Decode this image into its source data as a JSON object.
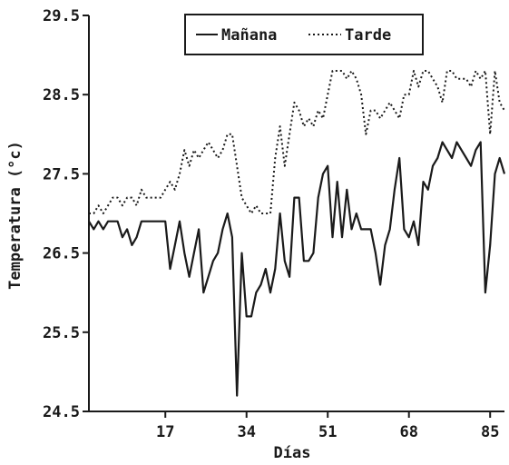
{
  "chart_data": {
    "type": "line",
    "xlabel": "Días",
    "ylabel": "Temperatura (°c)",
    "xlim": [
      1,
      88
    ],
    "ylim": [
      24.5,
      29.5
    ],
    "xticks": [
      17,
      34,
      51,
      68,
      85
    ],
    "xtick_labels": [
      "17",
      "34",
      "51",
      "68",
      "85"
    ],
    "yticks": [
      24.5,
      25.5,
      26.5,
      27.5,
      28.5,
      29.5
    ],
    "ytick_labels": [
      "24.5",
      "25.5",
      "26.5",
      "27.5",
      "28.5",
      "29.5"
    ],
    "grid": false,
    "legend_position": "top-right",
    "colors": {
      "line": "#1a1a1a"
    },
    "x": [
      1,
      2,
      3,
      4,
      5,
      6,
      7,
      8,
      9,
      10,
      11,
      12,
      13,
      14,
      15,
      16,
      17,
      18,
      19,
      20,
      21,
      22,
      23,
      24,
      25,
      26,
      27,
      28,
      29,
      30,
      31,
      32,
      33,
      34,
      35,
      36,
      37,
      38,
      39,
      40,
      41,
      42,
      43,
      44,
      45,
      46,
      47,
      48,
      49,
      50,
      51,
      52,
      53,
      54,
      55,
      56,
      57,
      58,
      59,
      60,
      61,
      62,
      63,
      64,
      65,
      66,
      67,
      68,
      69,
      70,
      71,
      72,
      73,
      74,
      75,
      76,
      77,
      78,
      79,
      80,
      81,
      82,
      83,
      84,
      85,
      86,
      87,
      88
    ],
    "series": [
      {
        "name": "Mañana",
        "style": "solid",
        "values": [
          26.9,
          26.8,
          26.9,
          26.8,
          26.9,
          26.9,
          26.9,
          26.7,
          26.8,
          26.6,
          26.7,
          26.9,
          26.9,
          26.9,
          26.9,
          26.9,
          26.9,
          26.3,
          26.6,
          26.9,
          26.5,
          26.2,
          26.5,
          26.8,
          26.0,
          26.2,
          26.4,
          26.5,
          26.8,
          27.0,
          26.7,
          24.7,
          26.5,
          25.7,
          25.7,
          26.0,
          26.1,
          26.3,
          26.0,
          26.3,
          27.0,
          26.4,
          26.2,
          27.2,
          27.2,
          26.4,
          26.4,
          26.5,
          27.2,
          27.5,
          27.6,
          26.7,
          27.4,
          26.7,
          27.3,
          26.8,
          27.0,
          26.8,
          26.8,
          26.8,
          26.5,
          26.1,
          26.6,
          26.8,
          27.3,
          27.7,
          26.8,
          26.7,
          26.9,
          26.6,
          27.4,
          27.3,
          27.6,
          27.7,
          27.9,
          27.8,
          27.7,
          27.9,
          27.8,
          27.7,
          27.6,
          27.8,
          27.9,
          26.0,
          26.6,
          27.5,
          27.7,
          27.5
        ]
      },
      {
        "name": "Tarde",
        "style": "dotted",
        "values": [
          27.0,
          27.0,
          27.1,
          27.0,
          27.1,
          27.2,
          27.2,
          27.1,
          27.2,
          27.2,
          27.1,
          27.3,
          27.2,
          27.2,
          27.2,
          27.2,
          27.3,
          27.4,
          27.3,
          27.5,
          27.8,
          27.6,
          27.8,
          27.7,
          27.8,
          27.9,
          27.8,
          27.7,
          27.8,
          28.0,
          28.0,
          27.6,
          27.2,
          27.1,
          27.0,
          27.1,
          27.0,
          27.0,
          27.0,
          27.7,
          28.1,
          27.6,
          28.0,
          28.4,
          28.3,
          28.1,
          28.2,
          28.1,
          28.3,
          28.2,
          28.5,
          28.8,
          28.8,
          28.8,
          28.7,
          28.8,
          28.7,
          28.5,
          28.0,
          28.3,
          28.3,
          28.2,
          28.3,
          28.4,
          28.3,
          28.2,
          28.5,
          28.5,
          28.8,
          28.6,
          28.8,
          28.8,
          28.7,
          28.6,
          28.4,
          28.8,
          28.8,
          28.7,
          28.7,
          28.7,
          28.6,
          28.8,
          28.7,
          28.8,
          28.0,
          28.8,
          28.4,
          28.3
        ]
      }
    ]
  }
}
